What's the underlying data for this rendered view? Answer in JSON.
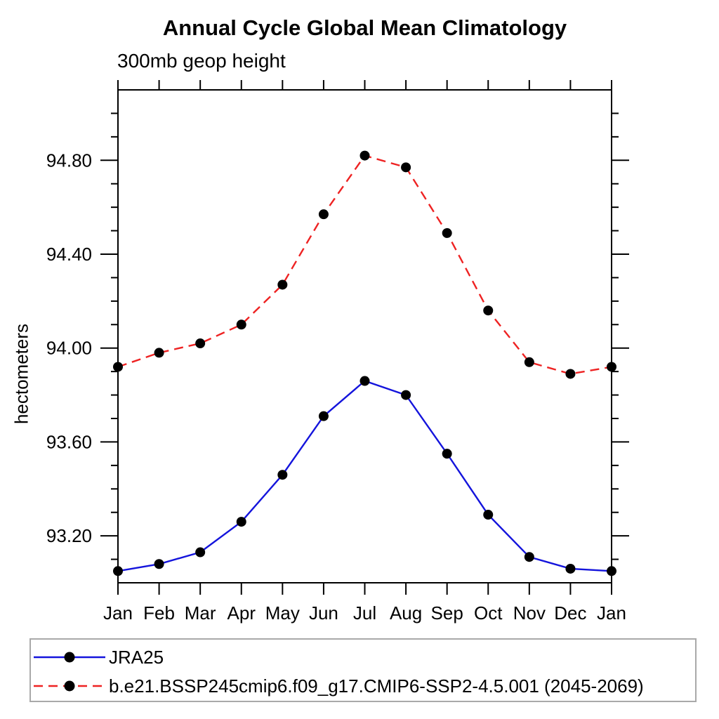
{
  "title": "Annual Cycle Global Mean Climatology",
  "subtitle": "300mb geop height",
  "y_axis_label": "hectometers",
  "chart_data": {
    "type": "line",
    "title": "Annual Cycle Global Mean Climatology",
    "subtitle": "300mb geop height",
    "ylabel": "hectometers",
    "categories": [
      "Jan",
      "Feb",
      "Mar",
      "Apr",
      "May",
      "Jun",
      "Jul",
      "Aug",
      "Sep",
      "Oct",
      "Nov",
      "Dec",
      "Jan"
    ],
    "series": [
      {
        "name": "JRA25",
        "line_style": "solid",
        "color": "#1414dc",
        "marker": "circle",
        "marker_color": "#000000",
        "values": [
          93.05,
          93.08,
          93.13,
          93.26,
          93.46,
          93.71,
          93.86,
          93.8,
          93.55,
          93.29,
          93.11,
          93.06,
          93.05
        ]
      },
      {
        "name": "b.e21.BSSP245cmip6.f09_g17.CMIP6-SSP2-4.5.001 (2045-2069)",
        "line_style": "dashed",
        "color": "#ee2222",
        "marker": "circle",
        "marker_color": "#000000",
        "values": [
          93.92,
          93.98,
          94.02,
          94.1,
          94.27,
          94.57,
          94.82,
          94.77,
          94.49,
          94.16,
          93.94,
          93.89,
          93.92
        ]
      }
    ],
    "ylim": [
      93.0,
      95.1
    ],
    "y_major_ticks": [
      93.2,
      93.6,
      94.0,
      94.4,
      94.8
    ],
    "y_tick_labels": [
      "93.20",
      "93.60",
      "94.00",
      "94.40",
      "94.80"
    ],
    "y_minor_step": 0.1,
    "grid": false,
    "legend_position": "bottom-left-box",
    "axis_color": "#000000",
    "legend_border_color": "#a9a9a9"
  },
  "legend": {
    "items": [
      {
        "label": "JRA25"
      },
      {
        "label": "b.e21.BSSP245cmip6.f09_g17.CMIP6-SSP2-4.5.001 (2045-2069)"
      }
    ]
  }
}
